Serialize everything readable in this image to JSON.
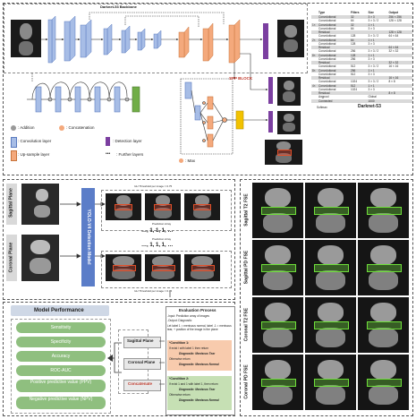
{
  "backbone": {
    "title": "Darknet-53 Backbone",
    "spp_label": "SPP BLOCK",
    "max_label": ": Max",
    "legend": {
      "addition": ": Addition",
      "concatenation": ": Concatenation",
      "conv": ": Convolution layer",
      "detection": ": Detection layer",
      "upsample": ": Up-sample layer",
      "further": ": Further layers"
    },
    "colors": {
      "conv": "#a7bde6",
      "upsample": "#f4a97c",
      "detection": "#7b3fa0",
      "residual": "#70ad47",
      "spp_out": "#f2c200"
    }
  },
  "darknet_table": {
    "headers": [
      "Type",
      "Filters",
      "Size",
      "Output"
    ],
    "rows": [
      {
        "m": "",
        "type": "Convolutional",
        "filters": "32",
        "size": "3 × 3",
        "output": "256 × 256"
      },
      {
        "m": "",
        "type": "Convolutional",
        "filters": "64",
        "size": "3 × 3 / 2",
        "output": "128 × 128"
      },
      {
        "m": "1×",
        "type": "Convolutional",
        "filters": "32",
        "size": "1 × 1",
        "output": ""
      },
      {
        "m": "",
        "type": "Convolutional",
        "filters": "64",
        "size": "3 × 3",
        "output": ""
      },
      {
        "m": "",
        "type": "Residual",
        "filters": "",
        "size": "",
        "output": "128 × 128"
      },
      {
        "m": "",
        "type": "Convolutional",
        "filters": "128",
        "size": "3 × 3 / 2",
        "output": "64 × 64"
      },
      {
        "m": "2×",
        "type": "Convolutional",
        "filters": "64",
        "size": "1 × 1",
        "output": ""
      },
      {
        "m": "",
        "type": "Convolutional",
        "filters": "128",
        "size": "3 × 3",
        "output": ""
      },
      {
        "m": "",
        "type": "Residual",
        "filters": "",
        "size": "",
        "output": "64 × 64"
      },
      {
        "m": "",
        "type": "Convolutional",
        "filters": "256",
        "size": "3 × 3 / 2",
        "output": "32 × 32"
      },
      {
        "m": "8×",
        "type": "Convolutional",
        "filters": "128",
        "size": "1 × 1",
        "output": ""
      },
      {
        "m": "",
        "type": "Convolutional",
        "filters": "256",
        "size": "3 × 3",
        "output": ""
      },
      {
        "m": "",
        "type": "Residual",
        "filters": "",
        "size": "",
        "output": "32 × 32"
      },
      {
        "m": "",
        "type": "Convolutional",
        "filters": "512",
        "size": "3 × 3 / 2",
        "output": "16 × 16"
      },
      {
        "m": "8×",
        "type": "Convolutional",
        "filters": "256",
        "size": "1 × 1",
        "output": ""
      },
      {
        "m": "",
        "type": "Convolutional",
        "filters": "512",
        "size": "3 × 3",
        "output": ""
      },
      {
        "m": "",
        "type": "Residual",
        "filters": "",
        "size": "",
        "output": "16 × 16"
      },
      {
        "m": "",
        "type": "Convolutional",
        "filters": "1024",
        "size": "3 × 3 / 2",
        "output": "8 × 8"
      },
      {
        "m": "4×",
        "type": "Convolutional",
        "filters": "512",
        "size": "1 × 1",
        "output": ""
      },
      {
        "m": "",
        "type": "Convolutional",
        "filters": "1024",
        "size": "3 × 3",
        "output": ""
      },
      {
        "m": "",
        "type": "Residual",
        "filters": "",
        "size": "",
        "output": "8 × 8"
      },
      {
        "m": "",
        "type": "Avgpool",
        "filters": "",
        "size": "Global",
        "output": ""
      },
      {
        "m": "",
        "type": "Connected",
        "filters": "",
        "size": "1000",
        "output": ""
      }
    ],
    "softmax": "Softmax",
    "footer": "Darknet-53"
  },
  "detection": {
    "sagittal_label": "Sagittal Plane",
    "coronal_label": "Coronal Plane",
    "model_label": "YOLO-V4 Detection Model",
    "threshold_top": "IoU Threshold per image = 0.75",
    "threshold_bottom": "IoU Threshold per image = 0.75",
    "prediction_array": "Prediction Array",
    "sequence": "…, 1, 1, 1, …"
  },
  "evaluation": {
    "title": "Evaluation Process",
    "input": "-Input: Prediction array of images",
    "output": "-Output: Diagnostic",
    "let_label": "Let label 1 = meniscus normal, label -1 = meniscus tear, + position of the image in the plane",
    "cond1_title": "*Condition 1:",
    "cond1_text": "If exist / with label 1 then return",
    "cond1_diag": "Diagnostic: Meniscus Tear",
    "cond1_else": "Otherwise return",
    "cond1_diag2": "Diagnostic: Meniscus Normal",
    "cond2_title": "*Condition 2:",
    "cond2_text": "If exist 1 and 1 with label 1, then return",
    "cond2_diag": "Diagnostic: Meniscus Tear",
    "cond2_else": "Otherwise return",
    "cond2_diag2": "Diagnostic: Meniscus Normal"
  },
  "planes": {
    "sagittal": "Sagittal Plane",
    "coronal": "Coronal Plane",
    "concatenate": "Concatenate"
  },
  "performance": {
    "title": "Model Performance",
    "metrics": [
      "Sensitivity",
      "Specificity",
      "Accuracy",
      "ROC-AUC",
      "Positive predictive value (PPV)",
      "Negative predictive value (NPV)"
    ]
  },
  "mri_rows": [
    "Sagittal T2 FSE",
    "Sagittal PD FSE",
    "Coronal T2 FSE",
    "Coronal PD FSE"
  ]
}
